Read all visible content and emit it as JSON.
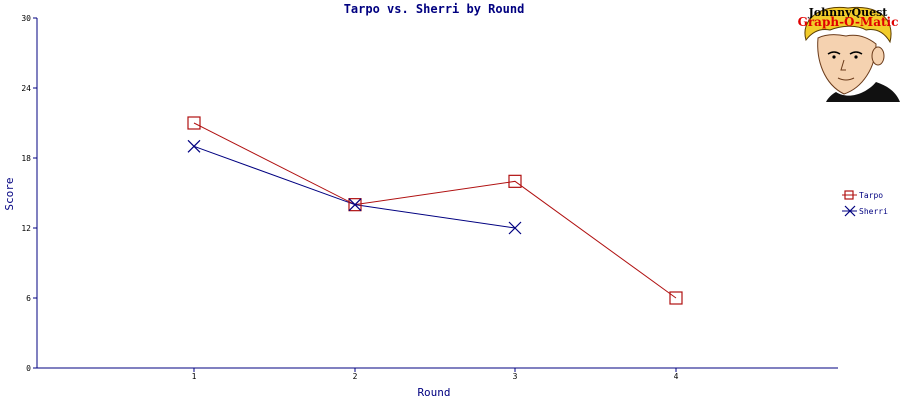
{
  "chart_data": {
    "type": "line",
    "title": "Tarpo vs. Sherri  by Round",
    "xlabel": "Round",
    "ylabel": "Score",
    "categories": [
      "1",
      "2",
      "3",
      "4"
    ],
    "ylim": [
      0,
      30
    ],
    "yticks": [
      "0",
      "6",
      "12",
      "18",
      "24",
      "30"
    ],
    "grid": false,
    "legend_position": "right",
    "series": [
      {
        "name": "Tarpo",
        "color": "#b01010",
        "marker": "square",
        "values": [
          21,
          14,
          16,
          6
        ]
      },
      {
        "name": "Sherri",
        "color": "#000080",
        "marker": "x",
        "values": [
          19,
          14,
          12,
          null
        ]
      }
    ]
  },
  "logo": {
    "line1": "JohnnyQuest",
    "line2": "Graph-O-Matic"
  }
}
